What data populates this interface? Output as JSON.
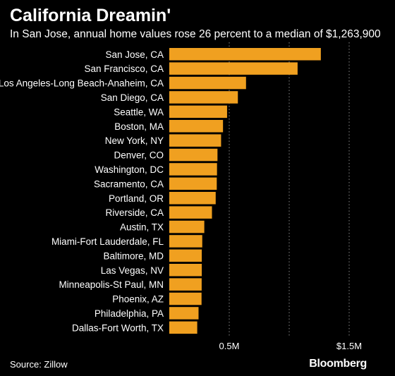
{
  "header": {
    "title": "California Dreamin'",
    "subtitle": "In San Jose, annual home values rose 26 percent to a median of $1,263,900"
  },
  "footer": {
    "source": "Source: Zillow",
    "brand": "Bloomberg"
  },
  "colors": {
    "bar": "#f0a020",
    "background": "#000000",
    "text": "#ffffff",
    "grid": "#888888"
  },
  "chart_data": {
    "type": "bar",
    "orientation": "horizontal",
    "title": "California Dreamin'",
    "subtitle": "In San Jose, annual home values rose 26 percent to a median of $1,263,900",
    "categories": [
      "San Jose, CA",
      "San Francisco, CA",
      "Los Angeles-Long Beach-Anaheim, CA",
      "San Diego, CA",
      "Seattle, WA",
      "Boston, MA",
      "New York, NY",
      "Denver, CO",
      "Washington, DC",
      "Sacramento, CA",
      "Portland, OR",
      "Riverside, CA",
      "Austin, TX",
      "Miami-Fort Lauderdale, FL",
      "Baltimore, MD",
      "Las Vegas, NV",
      "Minneapolis-St Paul, MN",
      "Phoenix, AZ",
      "Philadelphia, PA",
      "Dallas-Fort Worth, TX"
    ],
    "values": [
      1263900,
      1070000,
      640000,
      572000,
      482000,
      448000,
      432000,
      402000,
      398000,
      396000,
      387000,
      356000,
      292000,
      275000,
      271000,
      271000,
      270000,
      269000,
      244000,
      233000
    ],
    "xticks": [
      {
        "value": 500000,
        "label": "0.5M"
      },
      {
        "value": 1000000,
        "label": ""
      },
      {
        "value": 1500000,
        "label": "$1.5M"
      }
    ],
    "xlim": [
      0,
      1500000
    ],
    "grid": "vertical dotted",
    "legend": "none"
  }
}
